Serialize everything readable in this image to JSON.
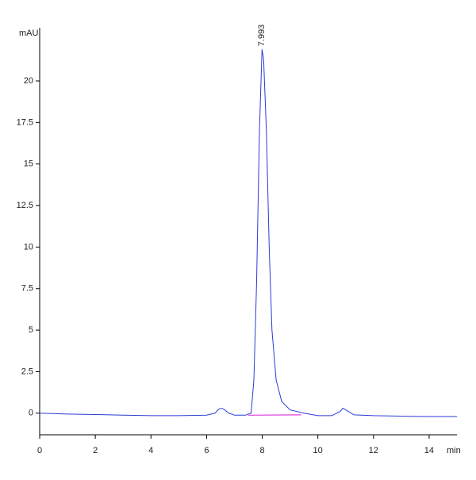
{
  "chart_data": {
    "type": "line",
    "y_label": "mAU",
    "x_label": "min",
    "x": [
      0,
      1,
      2,
      3,
      4,
      5,
      6,
      6.3,
      6.45,
      6.55,
      6.65,
      6.8,
      7,
      7.4,
      7.6,
      7.7,
      7.8,
      7.9,
      7.993,
      8.05,
      8.15,
      8.25,
      8.35,
      8.5,
      8.7,
      9,
      9.5,
      10,
      10.5,
      10.8,
      10.9,
      11.1,
      11.3,
      12,
      13,
      14,
      15
    ],
    "values": [
      0,
      -0.05,
      -0.08,
      -0.12,
      -0.15,
      -0.15,
      -0.12,
      0,
      0.25,
      0.3,
      0.2,
      0,
      -0.12,
      -0.12,
      0,
      2,
      8,
      17,
      21.9,
      21.3,
      17,
      10,
      5,
      2,
      0.7,
      0.2,
      0,
      -0.15,
      -0.15,
      0.1,
      0.3,
      0.1,
      -0.1,
      -0.15,
      -0.18,
      -0.2,
      -0.2
    ],
    "color": "#2b3bd6",
    "integration_baseline": {
      "x": [
        7.5,
        9.4
      ],
      "values": [
        -0.12,
        -0.1
      ],
      "color": "#e040e0"
    },
    "peak_label": {
      "x": 7.993,
      "text": "7.993"
    },
    "xlim": [
      0,
      15
    ],
    "xticks": [
      0,
      2,
      4,
      6,
      8,
      10,
      12,
      14
    ],
    "ylim": [
      -1.3,
      23.2
    ],
    "yticks": [
      0,
      2.5,
      5,
      7.5,
      10,
      12.5,
      15,
      17.5,
      20
    ]
  }
}
